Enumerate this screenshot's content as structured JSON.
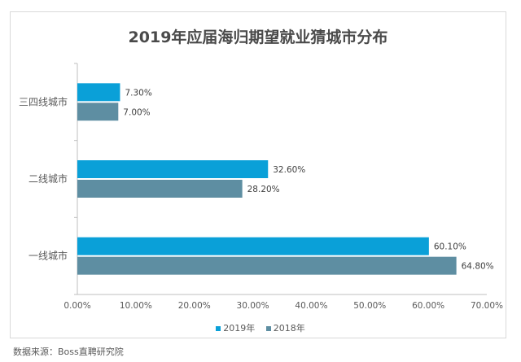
{
  "chart_data": {
    "type": "bar",
    "orientation": "horizontal",
    "title": "2019年应届海归期望就业猜城市分布",
    "categories": [
      "三四线城市",
      "二线城市",
      "一线城市"
    ],
    "series": [
      {
        "name": "2019年",
        "values": [
          7.3,
          32.6,
          60.1
        ],
        "labels": [
          "7.30%",
          "32.60%",
          "60.10%"
        ],
        "color": "#0aa0d8"
      },
      {
        "name": "2018年",
        "values": [
          7.0,
          28.2,
          64.8
        ],
        "labels": [
          "7.00%",
          "28.20%",
          "64.80%"
        ],
        "color": "#5e8ea2"
      }
    ],
    "xlim": [
      0,
      70
    ],
    "xticks": [
      "0.00%",
      "10.00%",
      "20.00%",
      "30.00%",
      "40.00%",
      "50.00%",
      "60.00%",
      "70.00%"
    ],
    "grid": false,
    "legend_position": "bottom"
  },
  "footer": {
    "source": "数据来源：Boss直聘研究院"
  }
}
